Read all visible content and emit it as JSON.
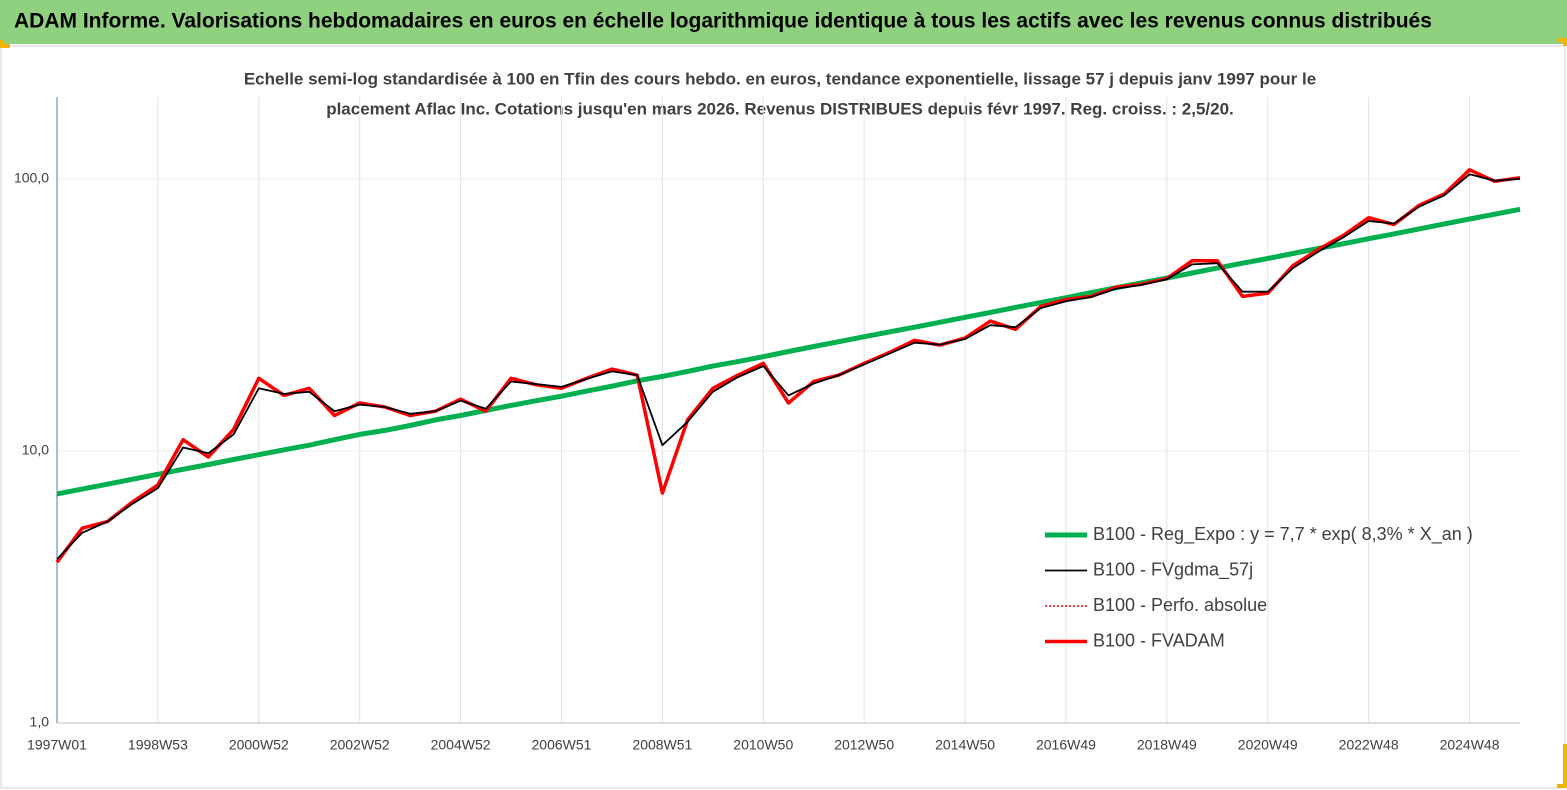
{
  "chart_data": {
    "type": "line",
    "header": "ADAM Informe. Valorisations hebdomadaires en euros en échelle logarithmique identique à tous les actifs avec les revenus connus distribués",
    "title_lines": [
      "Echelle semi-log standardisée à 100 en Tfin des cours hebdo. en euros, tendance exponentielle, lissage 57 j depuis janv 1997 pour le",
      "placement Aflac Inc. Cotations jusqu'en mars 2026. Revenus DISTRIBUES depuis févr 1997. Reg. croiss. : 2,5/20."
    ],
    "categories": [
      "1997W01",
      null,
      null,
      null,
      "1998W53",
      null,
      null,
      null,
      "2000W52",
      null,
      null,
      null,
      "2002W52",
      null,
      null,
      null,
      "2004W52",
      null,
      null,
      null,
      "2006W51",
      null,
      null,
      null,
      "2008W51",
      null,
      null,
      null,
      "2010W50",
      null,
      null,
      null,
      "2012W50",
      null,
      null,
      null,
      "2014W50",
      null,
      null,
      null,
      "2016W49",
      null,
      null,
      null,
      "2018W49",
      null,
      null,
      null,
      "2020W49",
      null,
      null,
      null,
      "2022W48",
      null,
      null,
      null,
      "2024W48",
      null,
      null
    ],
    "log_scale": true,
    "ylim": [
      1,
      200
    ],
    "yticks": [
      {
        "value": 1,
        "label": "1,0"
      },
      {
        "value": 10,
        "label": "10,0"
      },
      {
        "value": 100,
        "label": "100,0"
      }
    ],
    "grid": true,
    "legend": "lower right",
    "series": [
      {
        "name": "B100 - Reg_Expo : y = 7,7 * exp( 8,3% *  X_an )",
        "color": "#00b050",
        "values": [
          6.95,
          7.24,
          7.55,
          7.87,
          8.21,
          8.56,
          8.92,
          9.3,
          9.69,
          10.1,
          10.5,
          11.0,
          11.5,
          11.9,
          12.4,
          13.0,
          13.5,
          14.1,
          14.7,
          15.3,
          15.9,
          16.6,
          17.3,
          18.1,
          18.8,
          19.6,
          20.5,
          21.3,
          22.2,
          23.2,
          24.2,
          25.2,
          26.3,
          27.4,
          28.5,
          29.7,
          31.0,
          32.3,
          33.7,
          35.1,
          36.6,
          38.2,
          39.8,
          41.5,
          43.2,
          45.1,
          47.0,
          49.0,
          51.0,
          53.2,
          55.5,
          57.8,
          60.3,
          62.8,
          65.5,
          68.3,
          71.2,
          74.2,
          77.3
        ]
      },
      {
        "name": "B100 - FVgdma_57j",
        "color": "#000000",
        "values": [
          4.0,
          5.0,
          5.5,
          6.4,
          7.3,
          10.3,
          9.8,
          11.5,
          17.0,
          16.2,
          16.5,
          14.0,
          14.8,
          14.5,
          13.7,
          14.0,
          15.3,
          14.3,
          18.0,
          17.6,
          17.2,
          18.4,
          19.6,
          19.0,
          10.5,
          12.8,
          16.5,
          18.7,
          20.5,
          16.0,
          17.7,
          19.0,
          20.8,
          22.8,
          25.0,
          24.6,
          25.8,
          29.0,
          28.5,
          33.5,
          35.5,
          36.8,
          39.5,
          40.8,
          42.8,
          48.5,
          49.0,
          38.5,
          38.5,
          47.0,
          54.0,
          61.0,
          70.0,
          68.5,
          79.0,
          87.0,
          104.0,
          98.5,
          100.0
        ]
      },
      {
        "name": "B100 - Perfo. absolue",
        "color": "#ff0000",
        "values": [
          3.9,
          5.2,
          5.5,
          6.5,
          7.5,
          11.0,
          9.5,
          12.0,
          18.5,
          16.0,
          17.0,
          13.5,
          15.0,
          14.5,
          13.5,
          14.0,
          15.5,
          14.0,
          18.5,
          17.5,
          17.0,
          18.5,
          20.0,
          19.0,
          7.0,
          13.0,
          17.0,
          19.0,
          21.0,
          15.0,
          18.0,
          19.0,
          21.0,
          23.0,
          25.5,
          24.5,
          26.0,
          30.0,
          28.0,
          34.0,
          36.0,
          37.0,
          40.0,
          41.0,
          43.0,
          50.0,
          50.0,
          37.0,
          38.0,
          48.0,
          55.0,
          62.0,
          72.0,
          68.0,
          80.0,
          88.0,
          108.0,
          98.0,
          101.0
        ]
      },
      {
        "name": "B100 - FVADAM",
        "color": "#ff0000",
        "values": [
          3.9,
          5.2,
          5.5,
          6.5,
          7.5,
          11.0,
          9.5,
          12.0,
          18.5,
          16.0,
          17.0,
          13.5,
          15.0,
          14.5,
          13.5,
          14.0,
          15.5,
          14.0,
          18.5,
          17.5,
          17.0,
          18.5,
          20.0,
          19.0,
          7.0,
          13.0,
          17.0,
          19.0,
          21.0,
          15.0,
          18.0,
          19.0,
          21.0,
          23.0,
          25.5,
          24.5,
          26.0,
          30.0,
          28.0,
          34.0,
          36.0,
          37.0,
          40.0,
          41.0,
          43.0,
          50.0,
          50.0,
          37.0,
          38.0,
          48.0,
          55.0,
          62.0,
          72.0,
          68.0,
          80.0,
          88.0,
          108.0,
          98.0,
          101.0
        ]
      }
    ]
  }
}
